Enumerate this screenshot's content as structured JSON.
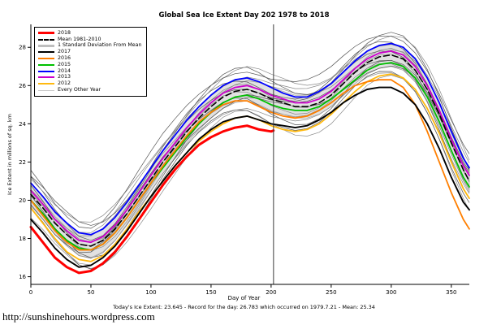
{
  "page": {
    "title": "Global Sea Ice Extent Day 202 1978 to 2018",
    "xlabel": "Day of Year",
    "ylabel": "Ice Extent in millions of sq. km",
    "caption": "Today's Ice Extent: 23.645  - Record for the day: 26.783 which occurred on 1979.7.21  - Mean: 25.34",
    "url": "http://sunshinehours.wordpress.com"
  },
  "chart_data": {
    "type": "line",
    "title": "Global Sea Ice Extent Day 202 1978 to 2018",
    "xlabel": "Day of Year",
    "ylabel": "Ice Extent in millions of sq. km",
    "xlim": [
      0,
      365
    ],
    "ylim": [
      15.6,
      29.2
    ],
    "xticks": [
      0,
      50,
      100,
      150,
      200,
      250,
      300,
      350
    ],
    "yticks": [
      16,
      18,
      20,
      22,
      24,
      26,
      28
    ],
    "marker_day": 202,
    "grid": false,
    "legend_position": "top-left",
    "x": [
      0,
      10,
      20,
      30,
      40,
      50,
      60,
      70,
      80,
      90,
      100,
      110,
      120,
      130,
      140,
      150,
      160,
      170,
      180,
      190,
      200,
      210,
      220,
      230,
      240,
      250,
      260,
      270,
      280,
      290,
      300,
      310,
      320,
      330,
      340,
      350,
      360,
      365
    ],
    "mean": [
      20.3,
      19.6,
      18.8,
      18.2,
      17.7,
      17.6,
      17.9,
      18.5,
      19.3,
      20.2,
      21.1,
      22.0,
      22.8,
      23.6,
      24.3,
      24.9,
      25.4,
      25.7,
      25.8,
      25.6,
      25.3,
      25.1,
      24.9,
      24.9,
      25.1,
      25.5,
      26.1,
      26.7,
      27.2,
      27.5,
      27.6,
      27.4,
      26.8,
      25.8,
      24.5,
      23.0,
      21.6,
      21.0
    ],
    "std_dev": 0.6,
    "series": [
      {
        "name": "2012",
        "color": "#ffb90f",
        "width": 1.8,
        "style": "solid",
        "values": [
          19.6,
          18.8,
          18.0,
          17.3,
          16.9,
          16.8,
          17.1,
          17.7,
          18.5,
          19.4,
          20.2,
          21.0,
          21.8,
          22.5,
          23.1,
          23.6,
          24.0,
          24.3,
          24.4,
          24.2,
          23.9,
          23.7,
          23.6,
          23.7,
          24.0,
          24.5,
          25.1,
          25.7,
          26.2,
          26.5,
          26.6,
          26.4,
          25.8,
          24.8,
          23.5,
          22.0,
          20.6,
          20.1
        ]
      },
      {
        "name": "2013",
        "color": "#cc00cc",
        "width": 1.8,
        "style": "solid",
        "values": [
          20.5,
          19.8,
          19.0,
          18.4,
          17.9,
          17.8,
          18.1,
          18.7,
          19.5,
          20.4,
          21.3,
          22.2,
          23.0,
          23.8,
          24.5,
          25.1,
          25.6,
          25.9,
          26.0,
          25.8,
          25.5,
          25.3,
          25.1,
          25.1,
          25.3,
          25.7,
          26.3,
          26.9,
          27.4,
          27.7,
          27.8,
          27.6,
          27.0,
          26.0,
          24.7,
          23.2,
          21.8,
          21.3
        ]
      },
      {
        "name": "2014",
        "color": "#0000ff",
        "width": 1.8,
        "style": "solid",
        "values": [
          20.9,
          20.2,
          19.4,
          18.8,
          18.3,
          18.2,
          18.5,
          19.1,
          19.9,
          20.8,
          21.7,
          22.6,
          23.4,
          24.2,
          24.9,
          25.5,
          26.0,
          26.3,
          26.4,
          26.2,
          25.9,
          25.6,
          25.4,
          25.4,
          25.7,
          26.1,
          26.7,
          27.3,
          27.8,
          28.1,
          28.2,
          28.0,
          27.4,
          26.4,
          25.1,
          23.6,
          22.2,
          21.7
        ]
      },
      {
        "name": "2015",
        "color": "#00c000",
        "width": 1.8,
        "style": "solid",
        "values": [
          20.0,
          19.3,
          18.5,
          17.9,
          17.5,
          17.4,
          17.7,
          18.3,
          19.1,
          20.0,
          20.9,
          21.7,
          22.5,
          23.3,
          24.0,
          24.6,
          25.1,
          25.4,
          25.5,
          25.3,
          25.0,
          24.8,
          24.7,
          24.7,
          24.9,
          25.3,
          25.8,
          26.3,
          26.8,
          27.1,
          27.2,
          27.0,
          26.4,
          25.4,
          24.1,
          22.6,
          21.2,
          20.7
        ]
      },
      {
        "name": "2016",
        "color": "#ff7f00",
        "width": 1.8,
        "style": "solid",
        "values": [
          20.0,
          19.2,
          18.4,
          17.8,
          17.4,
          17.4,
          17.7,
          18.3,
          19.1,
          20.0,
          20.9,
          21.8,
          22.6,
          23.4,
          24.1,
          24.6,
          25.0,
          25.2,
          25.2,
          24.9,
          24.6,
          24.4,
          24.3,
          24.4,
          24.7,
          25.1,
          25.6,
          26.0,
          26.2,
          26.3,
          26.3,
          25.9,
          25.0,
          23.6,
          22.0,
          20.4,
          19.0,
          18.5
        ]
      },
      {
        "name": "2017",
        "color": "#000000",
        "width": 1.9,
        "style": "solid",
        "values": [
          19.0,
          18.3,
          17.5,
          16.9,
          16.5,
          16.6,
          17.0,
          17.6,
          18.4,
          19.3,
          20.2,
          21.0,
          21.8,
          22.5,
          23.2,
          23.7,
          24.1,
          24.3,
          24.4,
          24.2,
          24.0,
          23.9,
          23.8,
          23.9,
          24.2,
          24.6,
          25.1,
          25.5,
          25.8,
          25.9,
          25.9,
          25.6,
          25.0,
          24.0,
          22.7,
          21.2,
          19.9,
          19.5
        ]
      },
      {
        "name": "Mean 1981-2010",
        "color": "#000000",
        "width": 1.6,
        "style": "dashed",
        "use_mean": true
      },
      {
        "name": "2018",
        "color": "#ff0000",
        "width": 3,
        "style": "solid",
        "x": [
          0,
          10,
          20,
          30,
          40,
          50,
          60,
          70,
          80,
          90,
          100,
          110,
          120,
          130,
          140,
          150,
          160,
          170,
          180,
          190,
          200,
          202
        ],
        "values": [
          18.6,
          17.8,
          17.0,
          16.5,
          16.2,
          16.3,
          16.7,
          17.3,
          18.1,
          19.0,
          19.9,
          20.8,
          21.6,
          22.3,
          22.9,
          23.3,
          23.6,
          23.8,
          23.9,
          23.7,
          23.6,
          23.645
        ]
      }
    ],
    "other_years": {
      "label": "Every Other Year",
      "params": [
        {
          "off": -1.3,
          "amp": 0.25,
          "ph": 0.3
        },
        {
          "off": -1.0,
          "amp": 0.3,
          "ph": 1.6
        },
        {
          "off": -0.8,
          "amp": 0.2,
          "ph": 2.8
        },
        {
          "off": -0.6,
          "amp": 0.35,
          "ph": 0.9
        },
        {
          "off": -0.45,
          "amp": 0.2,
          "ph": 2.1
        },
        {
          "off": -0.3,
          "amp": 0.3,
          "ph": 4.0
        },
        {
          "off": -0.15,
          "amp": 0.25,
          "ph": 1.2
        },
        {
          "off": 0.0,
          "amp": 0.3,
          "ph": 3.3
        },
        {
          "off": 0.15,
          "amp": 0.2,
          "ph": 0.6
        },
        {
          "off": 0.3,
          "amp": 0.3,
          "ph": 2.5
        },
        {
          "off": 0.45,
          "amp": 0.25,
          "ph": 4.4
        },
        {
          "off": 0.6,
          "amp": 0.35,
          "ph": 1.9
        },
        {
          "off": 0.75,
          "amp": 0.2,
          "ph": 3.8
        },
        {
          "off": 0.9,
          "amp": 0.3,
          "ph": 0.2
        },
        {
          "off": 1.05,
          "amp": 0.25,
          "ph": 5.0
        },
        {
          "off": 1.2,
          "amp": 0.3,
          "ph": 2.9
        }
      ]
    },
    "legend": [
      {
        "label": "2018",
        "color": "#ff0000",
        "style": "solid",
        "width": 3
      },
      {
        "label": "Mean 1981-2010",
        "color": "#000000",
        "style": "dashed",
        "width": 2
      },
      {
        "label": "1 Standard Deviation From Mean",
        "color": "#bebebe",
        "style": "solid",
        "width": 3
      },
      {
        "label": "2017",
        "color": "#000000",
        "style": "solid",
        "width": 2
      },
      {
        "label": "2016",
        "color": "#ff7f00",
        "style": "solid",
        "width": 2
      },
      {
        "label": "2015",
        "color": "#00c000",
        "style": "solid",
        "width": 2
      },
      {
        "label": "2014",
        "color": "#0000ff",
        "style": "solid",
        "width": 2
      },
      {
        "label": "2013",
        "color": "#cc00cc",
        "style": "solid",
        "width": 2
      },
      {
        "label": "2012",
        "color": "#ffb90f",
        "style": "solid",
        "width": 2
      },
      {
        "label": "Every Other Year",
        "color": "#c8c8c8",
        "style": "solid",
        "width": 1
      }
    ]
  }
}
